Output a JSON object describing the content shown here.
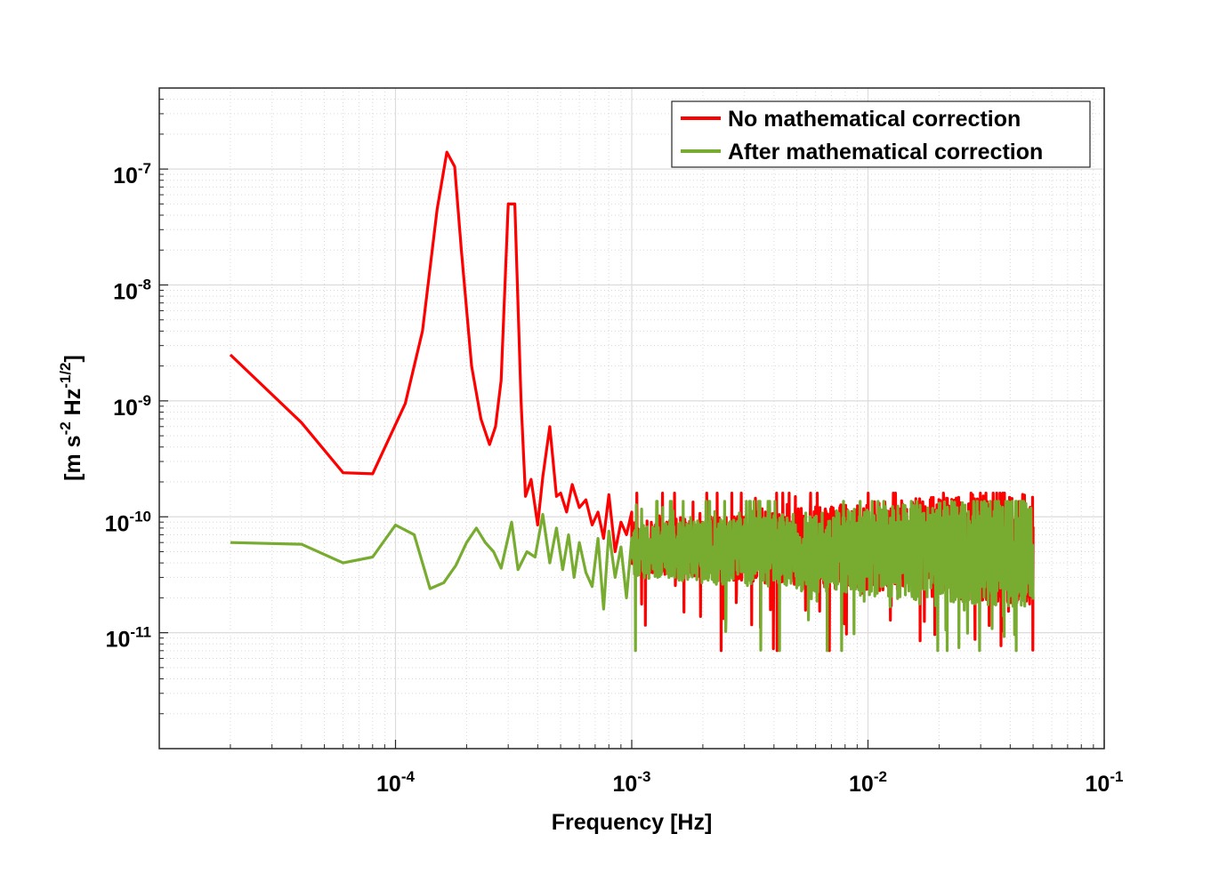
{
  "chart_data": {
    "type": "line",
    "x_scale": "log",
    "y_scale": "log",
    "xlabel": "Frequency  [Hz]",
    "ylabel": {
      "parts": [
        {
          "text": "[m s",
          "sup": false
        },
        {
          "text": "-2",
          "sup": true
        },
        {
          "text": " Hz",
          "sup": false
        },
        {
          "text": "-1/2",
          "sup": true
        },
        {
          "text": "]",
          "sup": false
        }
      ]
    },
    "xlim": [
      1e-05,
      0.1
    ],
    "ylim": [
      1e-12,
      5e-07
    ],
    "grid": true,
    "minor_grid": true,
    "legend_position": "top-right",
    "x_ticks": [
      {
        "value": 0.0001,
        "base": "10",
        "exp": "-4"
      },
      {
        "value": 0.001,
        "base": "10",
        "exp": "-3"
      },
      {
        "value": 0.01,
        "base": "10",
        "exp": "-2"
      },
      {
        "value": 0.1,
        "base": "10",
        "exp": "-1"
      }
    ],
    "y_ticks": [
      {
        "value": 1e-07,
        "base": "10",
        "exp": "-7"
      },
      {
        "value": 1e-08,
        "base": "10",
        "exp": "-8"
      },
      {
        "value": 1e-09,
        "base": "10",
        "exp": "-9"
      },
      {
        "value": 1e-10,
        "base": "10",
        "exp": "-10"
      },
      {
        "value": 1e-11,
        "base": "10",
        "exp": "-11"
      }
    ],
    "series": [
      {
        "name": "No mathematical correction",
        "color": "#ff0000",
        "x": [
          2e-05,
          4e-05,
          6e-05,
          8e-05,
          0.00011,
          0.00013,
          0.00015,
          0.000165,
          0.000178,
          0.00019,
          0.00021,
          0.00023,
          0.00025,
          0.000265,
          0.00028,
          0.0003,
          0.00032,
          0.00034,
          0.000355,
          0.000375,
          0.0004,
          0.00042,
          0.00045,
          0.00048,
          0.0005,
          0.00053,
          0.00056,
          0.0006,
          0.00064,
          0.00068,
          0.00072,
          0.00076,
          0.0008,
          0.00085,
          0.0009,
          0.00095,
          0.001
        ],
        "y": [
          2.5e-09,
          6.5e-10,
          2.4e-10,
          2.35e-10,
          9.5e-10,
          4e-09,
          4.5e-08,
          1.4e-07,
          1.05e-07,
          2e-08,
          2e-09,
          7e-10,
          4.2e-10,
          6e-10,
          1.5e-09,
          5e-08,
          5e-08,
          1e-09,
          1.5e-10,
          2.1e-10,
          8.5e-11,
          2.2e-10,
          6e-10,
          1.5e-10,
          1.6e-10,
          1.1e-10,
          1.9e-10,
          1.2e-10,
          1.4e-10,
          8.5e-11,
          1.1e-10,
          6.5e-11,
          1.55e-10,
          5e-11,
          9e-11,
          7e-11,
          1.1e-10
        ]
      },
      {
        "name": "After mathematical correction",
        "color": "#77ac30",
        "x": [
          2e-05,
          4e-05,
          6e-05,
          8e-05,
          0.0001,
          0.00012,
          0.00014,
          0.00016,
          0.00018,
          0.0002,
          0.00022,
          0.00024,
          0.00026,
          0.00028,
          0.00031,
          0.00033,
          0.00036,
          0.00039,
          0.00042,
          0.00045,
          0.00048,
          0.00051,
          0.00054,
          0.00057,
          0.0006,
          0.00064,
          0.00068,
          0.00072,
          0.00076,
          0.0008,
          0.00085,
          0.0009,
          0.00095,
          0.001
        ],
        "y": [
          6e-11,
          5.8e-11,
          4e-11,
          4.5e-11,
          8.5e-11,
          7e-11,
          2.4e-11,
          2.7e-11,
          3.8e-11,
          6e-11,
          8e-11,
          6e-11,
          5e-11,
          3.6e-11,
          9e-11,
          3.5e-11,
          5e-11,
          4.5e-11,
          1.05e-10,
          4e-11,
          8e-11,
          3.5e-11,
          7e-11,
          3e-11,
          6e-11,
          3.3e-11,
          2.5e-11,
          6.5e-11,
          1.6e-11,
          7.5e-11,
          3e-11,
          5.5e-11,
          2e-11,
          6.5e-11
        ]
      }
    ],
    "noise_band": {
      "description_freq_range": [
        0.001,
        0.05
      ],
      "no_correction_median": 5.5e-11,
      "after_correction_median": 5e-11,
      "upper_envelope": 1.6e-10,
      "lower_envelope": 7e-12
    }
  }
}
